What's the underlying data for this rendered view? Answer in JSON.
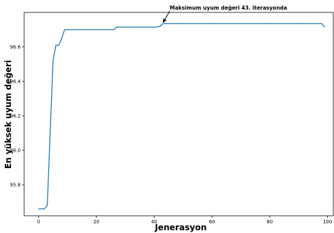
{
  "chart_data": {
    "type": "line",
    "title": "",
    "xlabel": "Jenerasyon",
    "ylabel": "En yüksek uyum değeri",
    "xlim": [
      -5,
      102
    ],
    "ylim": [
      95.62,
      96.8
    ],
    "xticks": [
      0,
      20,
      40,
      60,
      80,
      100
    ],
    "yticks": [
      95.8,
      96.0,
      96.2,
      96.4,
      96.6
    ],
    "grid": false,
    "line_color": "#1f77b4",
    "series": [
      {
        "x": [
          0,
          1,
          2,
          3,
          4,
          5,
          6,
          7,
          8,
          9,
          10,
          20,
          26,
          27,
          30,
          40,
          41,
          42,
          43,
          44,
          50,
          60,
          70,
          80,
          90,
          98,
          99
        ],
        "y": [
          95.66,
          95.66,
          95.66,
          95.68,
          96.1,
          96.52,
          96.61,
          96.61,
          96.65,
          96.7,
          96.7,
          96.7,
          96.7,
          96.715,
          96.715,
          96.715,
          96.715,
          96.72,
          96.735,
          96.735,
          96.735,
          96.735,
          96.735,
          96.735,
          96.735,
          96.735,
          96.715
        ]
      }
    ],
    "annotation": {
      "text": "Maksimum uyum değeri 43. iterasyonda",
      "x": 43,
      "y": 96.735
    }
  }
}
